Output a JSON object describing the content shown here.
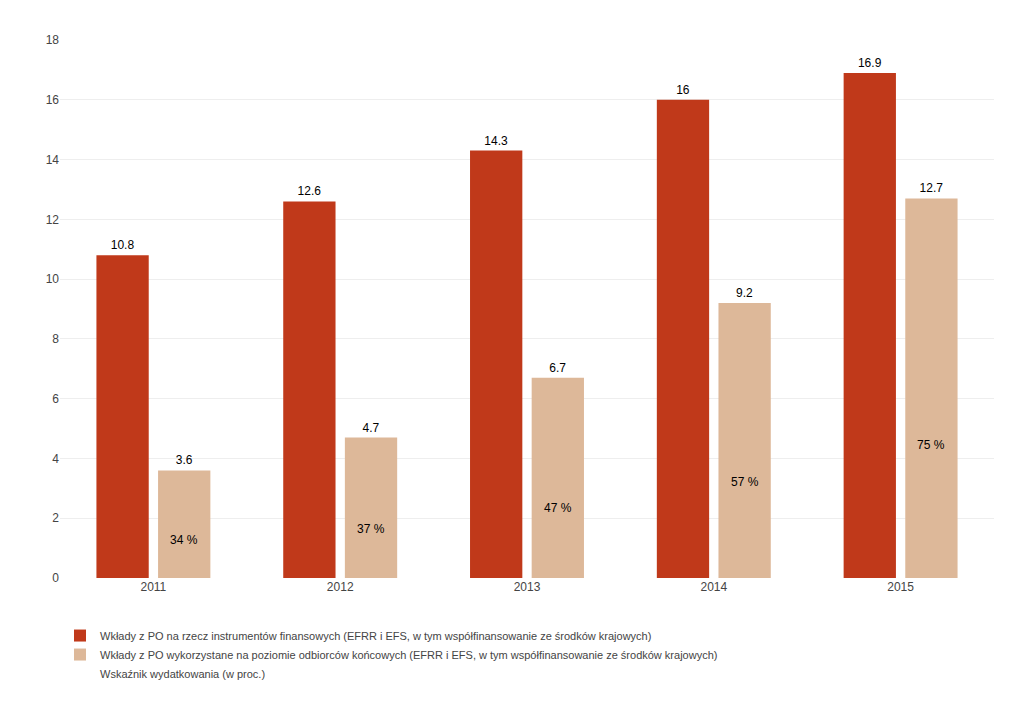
{
  "chart_data": {
    "type": "bar",
    "categories": [
      "2011",
      "2012",
      "2013",
      "2014",
      "2015"
    ],
    "series": [
      {
        "name": "Wkłady z PO na rzecz instrumentów finansowych (EFRR i EFS, w tym współfinansowanie ze środków krajowych)",
        "color": "#c0391a",
        "values": [
          10.8,
          12.6,
          14.3,
          16.0,
          16.9
        ]
      },
      {
        "name": "Wkłady z PO wykorzystane na poziomie odbiorców końcowych (EFRR i EFS, w tym współfinansowanie ze środków krajowych)",
        "color": "#ddb899",
        "values": [
          3.6,
          4.7,
          6.7,
          9.2,
          12.7
        ]
      }
    ],
    "percentages": {
      "name": "Wskaźnik wydatkowania (w proc.)",
      "labels": [
        "34 %",
        "37 %",
        "47 %",
        "57 %",
        "75 %"
      ]
    },
    "ylim": [
      0,
      18
    ],
    "yticks": [
      0,
      2,
      4,
      6,
      8,
      10,
      12,
      14,
      16,
      18
    ],
    "grid": true,
    "legend": "bottom",
    "data_labels": true
  }
}
